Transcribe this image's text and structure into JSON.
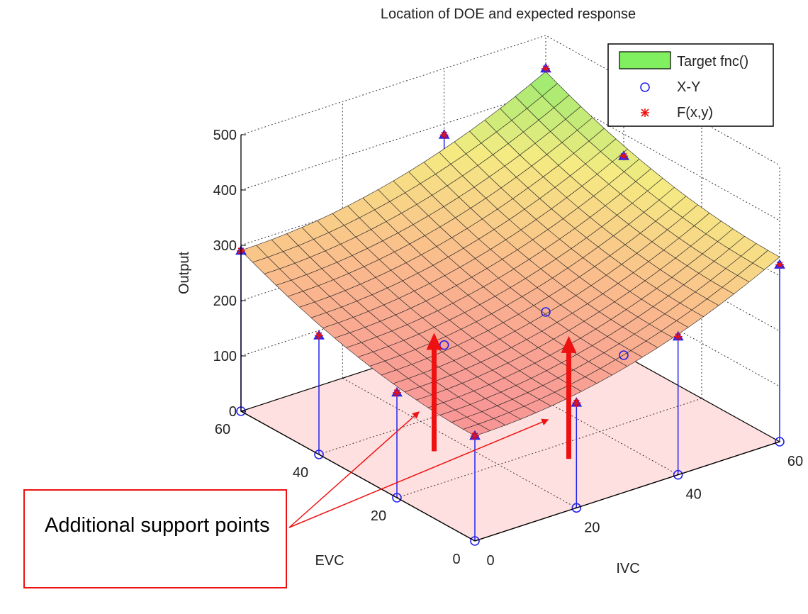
{
  "chart_data": {
    "type": "surface3d",
    "title": "Location of DOE and expected response",
    "xlabel": "IVC",
    "ylabel": "EVC",
    "zlabel": "Output",
    "xlim": [
      0,
      60
    ],
    "ylim": [
      0,
      60
    ],
    "zlim": [
      0,
      500
    ],
    "xticks": [
      "0",
      "20",
      "40",
      "60"
    ],
    "yticks": [
      "0",
      "20",
      "40",
      "60"
    ],
    "zticks": [
      "0",
      "100",
      "200",
      "300",
      "400",
      "500"
    ],
    "grid": true,
    "legend_position": "top-right",
    "legend": [
      {
        "label": "Target fnc()",
        "marker": "surface-patch",
        "color": "#80f060"
      },
      {
        "label": "X-Y",
        "marker": "circle",
        "color": "#2222ee"
      },
      {
        "label": "F(x,y)",
        "marker": "star",
        "color": "#ee1111"
      }
    ],
    "doe_points": [
      {
        "x": 0,
        "y": 0,
        "z": 190
      },
      {
        "x": 0,
        "y": 20,
        "z": 190
      },
      {
        "x": 0,
        "y": 40,
        "z": 215
      },
      {
        "x": 0,
        "y": 60,
        "z": 290
      },
      {
        "x": 20,
        "y": 0,
        "z": 190
      },
      {
        "x": 40,
        "y": 0,
        "z": 250
      },
      {
        "x": 60,
        "y": 0,
        "z": 320
      },
      {
        "x": 60,
        "y": 60,
        "z": 440
      },
      {
        "x": 40,
        "y": 60,
        "z": 380
      },
      {
        "x": 60,
        "y": 40,
        "z": 360
      }
    ],
    "support_points": [
      {
        "x": 15,
        "y": 30
      },
      {
        "x": 30,
        "y": 15
      }
    ]
  },
  "callout": {
    "text": "Additional support points"
  }
}
